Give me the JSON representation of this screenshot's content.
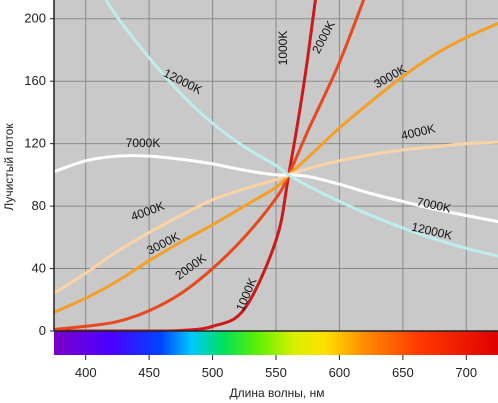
{
  "chart_data": {
    "type": "line",
    "title": "",
    "xlabel": "Длина волны, нм",
    "ylabel": "Лучистый поток",
    "xlim": [
      375,
      725
    ],
    "ylim": [
      0,
      212
    ],
    "xticks": [
      400,
      450,
      500,
      550,
      600,
      650,
      700
    ],
    "xtick_labels": [
      "400",
      "450",
      "500",
      "550",
      "600",
      "650",
      "700"
    ],
    "yticks": [
      0,
      40,
      80,
      120,
      160,
      200
    ],
    "ytick_labels": [
      "0",
      "40",
      "80",
      "120",
      "160",
      "200"
    ],
    "grid": true,
    "background": "#c9c9c9",
    "spectrum_bar": true,
    "x": [
      375,
      400,
      425,
      450,
      475,
      500,
      525,
      550,
      560,
      575,
      600,
      625,
      650,
      675,
      700,
      725
    ],
    "series": [
      {
        "name": "1000K",
        "color": "#cc1a1a",
        "label": "1000K",
        "values": [
          0,
          0,
          0,
          0,
          0.3,
          3,
          14,
          58,
          100,
          175,
          330,
          null,
          null,
          null,
          null,
          null
        ]
      },
      {
        "name": "2000K",
        "color": "#e8481d",
        "label": "2000K",
        "values": [
          1,
          3,
          6,
          13,
          24,
          40,
          60,
          85,
          100,
          128,
          172,
          225,
          null,
          null,
          null,
          null
        ]
      },
      {
        "name": "3000K",
        "color": "#f4a026",
        "label": "3000K",
        "values": [
          12,
          21,
          32,
          45,
          57,
          68,
          80,
          92,
          100,
          111,
          130,
          147,
          163,
          177,
          188,
          197
        ]
      },
      {
        "name": "4000K",
        "color": "#fad4a6",
        "label": "4000K",
        "values": [
          24,
          37,
          51,
          63,
          74,
          84,
          91,
          97,
          100,
          104,
          109,
          113,
          116,
          118,
          120,
          121
        ]
      },
      {
        "name": "7000K",
        "color": "#ffffff",
        "label": "7000K",
        "values": [
          102,
          109,
          112,
          112,
          110,
          107,
          103,
          100,
          100,
          99,
          94,
          88,
          83,
          78,
          74,
          70
        ]
      },
      {
        "name": "12000K",
        "color": "#bdeded",
        "label": "12000K",
        "values": [
          262,
          232,
          201,
          175,
          152,
          133,
          118,
          106,
          100,
          93,
          83,
          74,
          66,
          59,
          53,
          48
        ]
      }
    ],
    "curve_labels": [
      {
        "text": "1000K",
        "series": "1000K"
      },
      {
        "text": "1000K",
        "series": "1000K"
      },
      {
        "text": "2000K",
        "series": "2000K"
      },
      {
        "text": "2000K",
        "series": "2000K"
      },
      {
        "text": "3000K",
        "series": "3000K"
      },
      {
        "text": "3000K",
        "series": "3000K"
      },
      {
        "text": "4000K",
        "series": "4000K"
      },
      {
        "text": "4000K",
        "series": "4000K"
      },
      {
        "text": "7000K",
        "series": "7000K"
      },
      {
        "text": "7000K",
        "series": "7000K"
      },
      {
        "text": "12000K",
        "series": "12000K"
      },
      {
        "text": "12000K",
        "series": "12000K"
      }
    ]
  }
}
